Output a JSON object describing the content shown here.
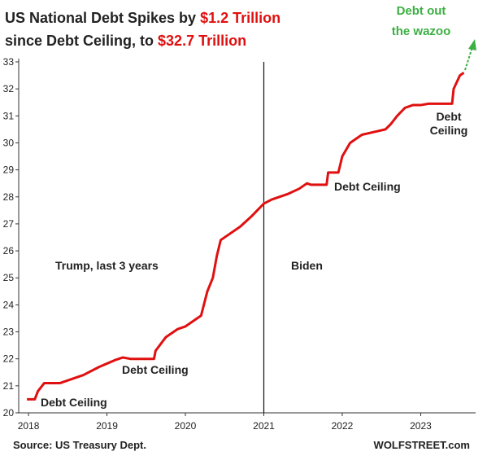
{
  "chart_data": {
    "type": "line",
    "title": [
      {
        "text": "US National Debt Spikes by ",
        "color": "#222222"
      },
      {
        "text": "$1.2 Trillion",
        "color": "#e01010"
      },
      {
        "text": "since Debt Ceiling, to ",
        "color": "#222222"
      },
      {
        "text": "$32.7 Trillion",
        "color": "#e01010"
      }
    ],
    "x": [
      2017.98,
      2018.08,
      2018.12,
      2018.2,
      2018.3,
      2018.4,
      2018.5,
      2018.7,
      2018.9,
      2019.1,
      2019.2,
      2019.3,
      2019.6,
      2019.62,
      2019.75,
      2019.9,
      2020.0,
      2020.1,
      2020.2,
      2020.28,
      2020.35,
      2020.4,
      2020.45,
      2020.55,
      2020.7,
      2020.85,
      2020.95,
      2021.0,
      2021.1,
      2021.3,
      2021.45,
      2021.55,
      2021.6,
      2021.8,
      2021.82,
      2021.95,
      2022.0,
      2022.1,
      2022.25,
      2022.4,
      2022.55,
      2022.62,
      2022.7,
      2022.8,
      2022.9,
      2023.0,
      2023.1,
      2023.4,
      2023.42,
      2023.5,
      2023.55
    ],
    "series": [
      {
        "color": "#e01010",
        "values": [
          20.5,
          20.5,
          20.8,
          21.1,
          21.1,
          21.1,
          21.2,
          21.4,
          21.7,
          21.95,
          22.05,
          22.0,
          22.0,
          22.3,
          22.8,
          23.1,
          23.2,
          23.4,
          23.6,
          24.5,
          25.0,
          25.8,
          26.4,
          26.6,
          26.9,
          27.3,
          27.6,
          27.75,
          27.9,
          28.1,
          28.3,
          28.5,
          28.45,
          28.45,
          28.9,
          28.9,
          29.5,
          30.0,
          30.3,
          30.4,
          30.5,
          30.7,
          31.0,
          31.3,
          31.4,
          31.4,
          31.45,
          31.45,
          32.0,
          32.5,
          32.6
        ]
      }
    ],
    "xlim": [
      2017.875,
      2023.7
    ],
    "xticks": [
      2018,
      2019,
      2020,
      2021,
      2022,
      2023
    ],
    "ylim": [
      20,
      33
    ],
    "yticks": [
      20,
      21,
      22,
      23,
      24,
      25,
      26,
      27,
      28,
      29,
      30,
      31,
      32,
      33
    ],
    "vline": 2021,
    "annotations": [
      {
        "lines": [
          "Debt out",
          "the wazoo"
        ],
        "color": "#3cb043"
      },
      {
        "lines": [
          "Debt Ceiling"
        ]
      },
      {
        "lines": [
          "Debt Ceiling"
        ]
      },
      {
        "lines": [
          "Debt Ceiling"
        ]
      },
      {
        "lines": [
          "Debt",
          "Ceiling"
        ]
      },
      {
        "lines": [
          "Trump, last 3 years"
        ]
      },
      {
        "lines": [
          "Biden"
        ]
      }
    ],
    "source": "Source: US Treasury Dept.",
    "credit": "WOLFSTREET.com"
  }
}
